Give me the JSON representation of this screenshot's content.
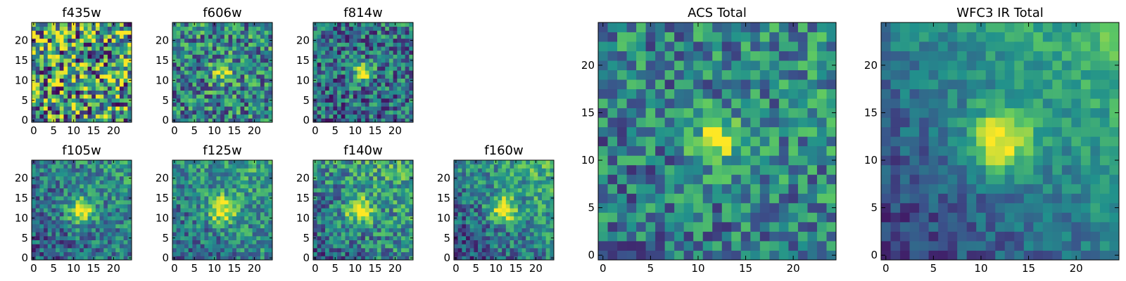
{
  "figure": {
    "colormap": "viridis",
    "colormap_stops": [
      "#440154",
      "#3b528b",
      "#21918c",
      "#5ec962",
      "#fde725"
    ]
  },
  "chart_data": [
    {
      "type": "heatmap",
      "title": "f435w",
      "grid": false,
      "xlim": [
        -0.5,
        24.5
      ],
      "ylim": [
        -0.5,
        24.5
      ],
      "xticks": [
        0,
        5,
        10,
        15,
        20
      ],
      "xtick_labels": [
        "0",
        "5",
        "10",
        "15",
        "20"
      ],
      "yticks": [
        0,
        5,
        10,
        15,
        20
      ],
      "ytick_labels": [
        "0",
        "5",
        "10",
        "15",
        "20"
      ],
      "source": {
        "cx": 12,
        "cy": 12,
        "sigma": 2.0,
        "amp": 0.0,
        "noise": 0.55,
        "base": 0.55,
        "grad": 0.0,
        "seed": 11
      }
    },
    {
      "type": "heatmap",
      "title": "f606w",
      "grid": false,
      "xlim": [
        -0.5,
        24.5
      ],
      "ylim": [
        -0.5,
        24.5
      ],
      "xticks": [
        0,
        5,
        10,
        15,
        20
      ],
      "xtick_labels": [
        "0",
        "5",
        "10",
        "15",
        "20"
      ],
      "yticks": [
        0,
        5,
        10,
        15,
        20
      ],
      "ytick_labels": [
        "0",
        "5",
        "10",
        "15",
        "20"
      ],
      "source": {
        "cx": 12,
        "cy": 12,
        "sigma": 1.8,
        "amp": 0.45,
        "noise": 0.35,
        "base": 0.45,
        "grad": 0.05,
        "seed": 23
      }
    },
    {
      "type": "heatmap",
      "title": "f814w",
      "grid": false,
      "xlim": [
        -0.5,
        24.5
      ],
      "ylim": [
        -0.5,
        24.5
      ],
      "xticks": [
        0,
        5,
        10,
        15,
        20
      ],
      "xtick_labels": [
        "0",
        "5",
        "10",
        "15",
        "20"
      ],
      "yticks": [
        0,
        5,
        10,
        15,
        20
      ],
      "ytick_labels": [
        "0",
        "5",
        "10",
        "15",
        "20"
      ],
      "source": {
        "cx": 12,
        "cy": 12,
        "sigma": 1.6,
        "amp": 0.7,
        "noise": 0.32,
        "base": 0.35,
        "grad": 0.08,
        "seed": 37
      }
    },
    {
      "type": "heatmap",
      "title": "f105w",
      "grid": false,
      "xlim": [
        -0.5,
        24.5
      ],
      "ylim": [
        -0.5,
        24.5
      ],
      "xticks": [
        0,
        5,
        10,
        15,
        20
      ],
      "xtick_labels": [
        "0",
        "5",
        "10",
        "15",
        "20"
      ],
      "yticks": [
        0,
        5,
        10,
        15,
        20
      ],
      "ytick_labels": [
        "0",
        "5",
        "10",
        "15",
        "20"
      ],
      "source": {
        "cx": 12,
        "cy": 12,
        "sigma": 2.3,
        "amp": 0.6,
        "noise": 0.25,
        "base": 0.35,
        "grad": 0.25,
        "seed": 41
      }
    },
    {
      "type": "heatmap",
      "title": "f125w",
      "grid": false,
      "xlim": [
        -0.5,
        24.5
      ],
      "ylim": [
        -0.5,
        24.5
      ],
      "xticks": [
        0,
        5,
        10,
        15,
        20
      ],
      "xtick_labels": [
        "0",
        "5",
        "10",
        "15",
        "20"
      ],
      "yticks": [
        0,
        5,
        10,
        15,
        20
      ],
      "ytick_labels": [
        "0",
        "5",
        "10",
        "15",
        "20"
      ],
      "source": {
        "cx": 12,
        "cy": 12,
        "sigma": 2.4,
        "amp": 0.55,
        "noise": 0.25,
        "base": 0.4,
        "grad": 0.3,
        "seed": 53
      }
    },
    {
      "type": "heatmap",
      "title": "f140w",
      "grid": false,
      "xlim": [
        -0.5,
        24.5
      ],
      "ylim": [
        -0.5,
        24.5
      ],
      "xticks": [
        0,
        5,
        10,
        15,
        20
      ],
      "xtick_labels": [
        "0",
        "5",
        "10",
        "15",
        "20"
      ],
      "yticks": [
        0,
        5,
        10,
        15,
        20
      ],
      "ytick_labels": [
        "0",
        "5",
        "10",
        "15",
        "20"
      ],
      "source": {
        "cx": 11,
        "cy": 12,
        "sigma": 2.2,
        "amp": 0.6,
        "noise": 0.28,
        "base": 0.4,
        "grad": 0.35,
        "seed": 67
      }
    },
    {
      "type": "heatmap",
      "title": "f160w",
      "grid": false,
      "xlim": [
        -0.5,
        24.5
      ],
      "ylim": [
        -0.5,
        24.5
      ],
      "xticks": [
        0,
        5,
        10,
        15,
        20
      ],
      "xtick_labels": [
        "0",
        "5",
        "10",
        "15",
        "20"
      ],
      "yticks": [
        0,
        5,
        10,
        15,
        20
      ],
      "ytick_labels": [
        "0",
        "5",
        "10",
        "15",
        "20"
      ],
      "source": {
        "cx": 12,
        "cy": 12,
        "sigma": 2.2,
        "amp": 0.6,
        "noise": 0.25,
        "base": 0.35,
        "grad": 0.45,
        "seed": 79
      }
    },
    {
      "type": "heatmap",
      "title": "ACS Total",
      "grid": false,
      "xlim": [
        -0.5,
        24.5
      ],
      "ylim": [
        -0.5,
        24.5
      ],
      "xticks": [
        0,
        5,
        10,
        15,
        20
      ],
      "xtick_labels": [
        "0",
        "5",
        "10",
        "15",
        "20"
      ],
      "yticks": [
        0,
        5,
        10,
        15,
        20
      ],
      "ytick_labels": [
        "0",
        "5",
        "10",
        "15",
        "20"
      ],
      "source": {
        "cx": 12,
        "cy": 12,
        "sigma": 1.7,
        "amp": 0.55,
        "noise": 0.28,
        "base": 0.42,
        "grad": 0.1,
        "seed": 97
      }
    },
    {
      "type": "heatmap",
      "title": "WFC3 IR Total",
      "grid": false,
      "xlim": [
        -0.5,
        24.5
      ],
      "ylim": [
        -0.5,
        24.5
      ],
      "xticks": [
        0,
        5,
        10,
        15,
        20
      ],
      "xtick_labels": [
        "0",
        "5",
        "10",
        "15",
        "20"
      ],
      "yticks": [
        0,
        5,
        10,
        15,
        20
      ],
      "ytick_labels": [
        "0",
        "5",
        "10",
        "15",
        "20"
      ],
      "source": {
        "cx": 12,
        "cy": 12,
        "sigma": 2.3,
        "amp": 0.6,
        "noise": 0.14,
        "base": 0.3,
        "grad": 0.55,
        "seed": 113
      }
    }
  ]
}
